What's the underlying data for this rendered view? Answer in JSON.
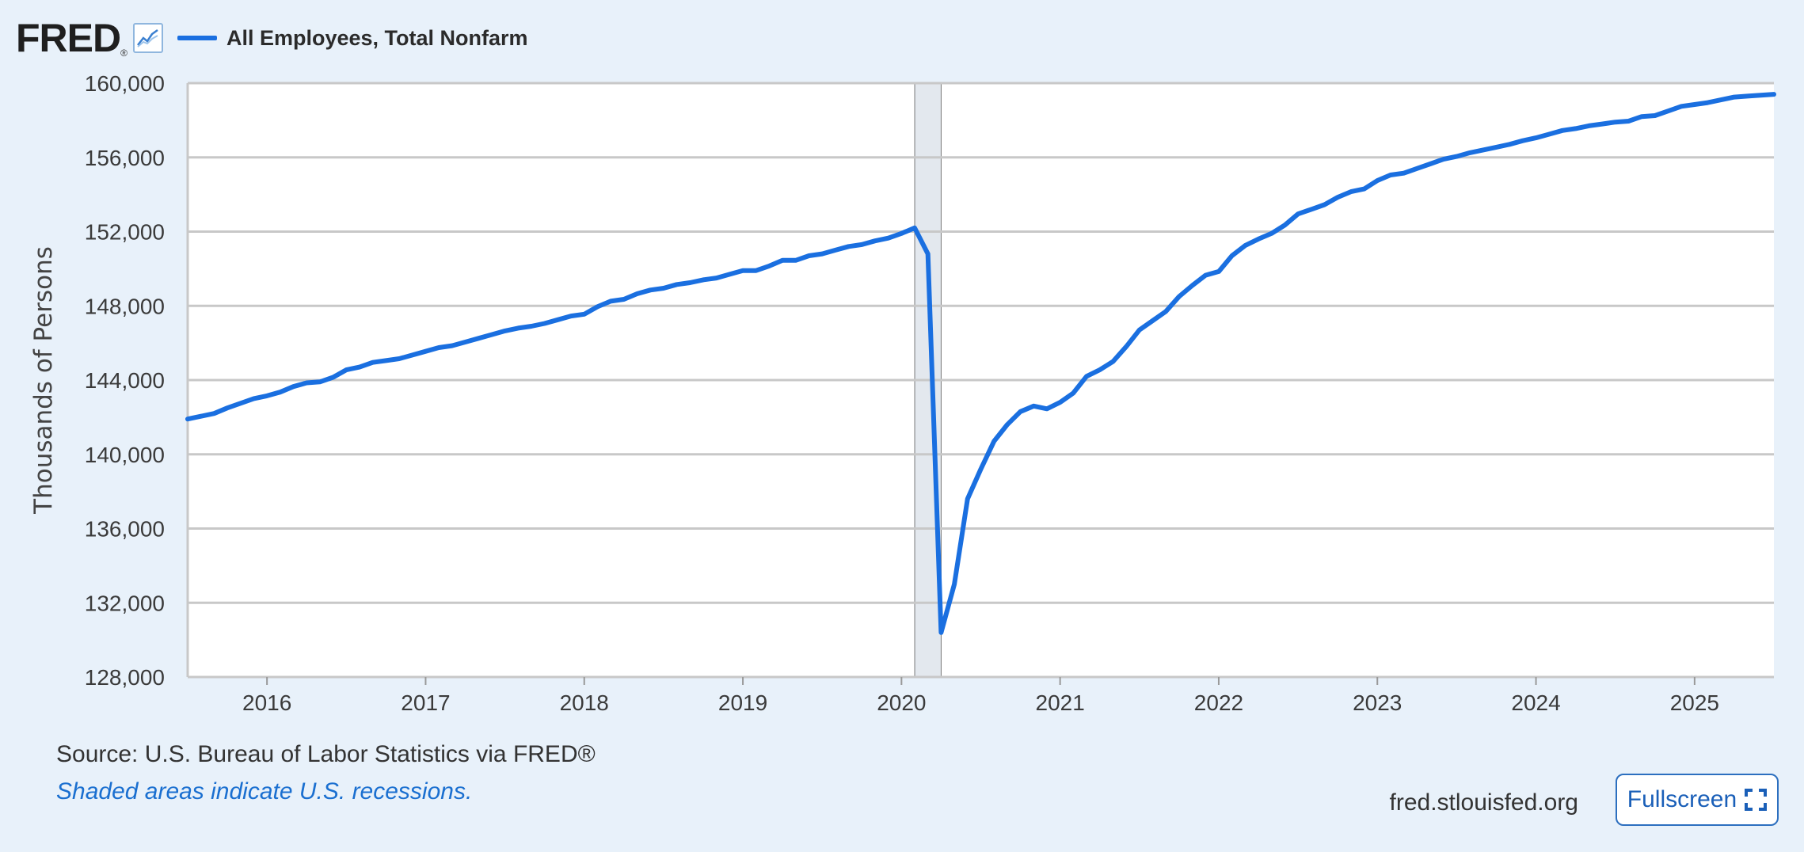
{
  "header": {
    "logo_text": "FRED",
    "logo_reg": "®",
    "legend_label": "All Employees, Total Nonfarm"
  },
  "footer": {
    "source": "Source: U.S. Bureau of Labor Statistics via FRED®",
    "note": "Shaded areas indicate U.S. recessions.",
    "site": "fred.stlouisfed.org",
    "fullscreen_label": "Fullscreen"
  },
  "icons": {
    "logo_graph": "line-chart-icon",
    "fullscreen": "fullscreen-icon"
  },
  "colors": {
    "series": "#1a6fe0",
    "recession_shade": "#e3e8ee",
    "background": "#e8f1fa"
  },
  "chart_data": {
    "type": "line",
    "title": "",
    "xlabel": "",
    "ylabel": "Thousands of Persons",
    "ylim": [
      128000,
      160000
    ],
    "xlim": [
      "2015-07",
      "2025-07"
    ],
    "y_ticks": [
      "128,000",
      "132,000",
      "136,000",
      "140,000",
      "144,000",
      "148,000",
      "152,000",
      "156,000",
      "160,000"
    ],
    "x_ticks": [
      "2016",
      "2017",
      "2018",
      "2019",
      "2020",
      "2021",
      "2022",
      "2023",
      "2024",
      "2025"
    ],
    "grid": true,
    "recessions": [
      {
        "start": "2020-02",
        "end": "2020-04"
      }
    ],
    "series": [
      {
        "name": "All Employees, Total Nonfarm",
        "x": [
          "2015-07",
          "2015-08",
          "2015-09",
          "2015-10",
          "2015-11",
          "2015-12",
          "2016-01",
          "2016-02",
          "2016-03",
          "2016-04",
          "2016-05",
          "2016-06",
          "2016-07",
          "2016-08",
          "2016-09",
          "2016-10",
          "2016-11",
          "2016-12",
          "2017-01",
          "2017-02",
          "2017-03",
          "2017-04",
          "2017-05",
          "2017-06",
          "2017-07",
          "2017-08",
          "2017-09",
          "2017-10",
          "2017-11",
          "2017-12",
          "2018-01",
          "2018-02",
          "2018-03",
          "2018-04",
          "2018-05",
          "2018-06",
          "2018-07",
          "2018-08",
          "2018-09",
          "2018-10",
          "2018-11",
          "2018-12",
          "2019-01",
          "2019-02",
          "2019-03",
          "2019-04",
          "2019-05",
          "2019-06",
          "2019-07",
          "2019-08",
          "2019-09",
          "2019-10",
          "2019-11",
          "2019-12",
          "2020-01",
          "2020-02",
          "2020-03",
          "2020-04",
          "2020-05",
          "2020-06",
          "2020-07",
          "2020-08",
          "2020-09",
          "2020-10",
          "2020-11",
          "2020-12",
          "2021-01",
          "2021-02",
          "2021-03",
          "2021-04",
          "2021-05",
          "2021-06",
          "2021-07",
          "2021-08",
          "2021-09",
          "2021-10",
          "2021-11",
          "2021-12",
          "2022-01",
          "2022-02",
          "2022-03",
          "2022-04",
          "2022-05",
          "2022-06",
          "2022-07",
          "2022-08",
          "2022-09",
          "2022-10",
          "2022-11",
          "2022-12",
          "2023-01",
          "2023-02",
          "2023-03",
          "2023-04",
          "2023-05",
          "2023-06",
          "2023-07",
          "2023-08",
          "2023-09",
          "2023-10",
          "2023-11",
          "2023-12",
          "2024-01",
          "2024-02",
          "2024-03",
          "2024-04",
          "2024-05",
          "2024-06",
          "2024-07",
          "2024-08",
          "2024-09",
          "2024-10",
          "2024-11",
          "2024-12",
          "2025-01",
          "2025-02",
          "2025-03",
          "2025-04",
          "2025-05",
          "2025-06",
          "2025-07"
        ],
        "values": [
          141900,
          142050,
          142200,
          142500,
          142750,
          143000,
          143150,
          143350,
          143650,
          143850,
          143900,
          144150,
          144550,
          144700,
          144950,
          145050,
          145150,
          145350,
          145550,
          145750,
          145850,
          146050,
          146250,
          146450,
          146650,
          146800,
          146900,
          147050,
          147250,
          147450,
          147550,
          147950,
          148250,
          148350,
          148650,
          148850,
          148950,
          149150,
          149250,
          149400,
          149500,
          149700,
          149900,
          149900,
          150150,
          150450,
          150450,
          150700,
          150800,
          151000,
          151200,
          151300,
          151500,
          151650,
          151900,
          152200,
          150800,
          130400,
          133000,
          137600,
          139200,
          140700,
          141600,
          142300,
          142600,
          142450,
          142800,
          143300,
          144200,
          144550,
          145000,
          145800,
          146700,
          147200,
          147700,
          148500,
          149100,
          149650,
          149850,
          150700,
          151250,
          151600,
          151900,
          152350,
          152950,
          153200,
          153450,
          153850,
          154150,
          154300,
          154750,
          155050,
          155150,
          155400,
          155650,
          155900,
          156050,
          156250,
          156400,
          156550,
          156700,
          156900,
          157050,
          157250,
          157450,
          157550,
          157700,
          157800,
          157900,
          157950,
          158200,
          158250,
          158500,
          158750,
          158850,
          158950,
          159100,
          159250,
          159300,
          159350,
          159400
        ]
      }
    ]
  }
}
